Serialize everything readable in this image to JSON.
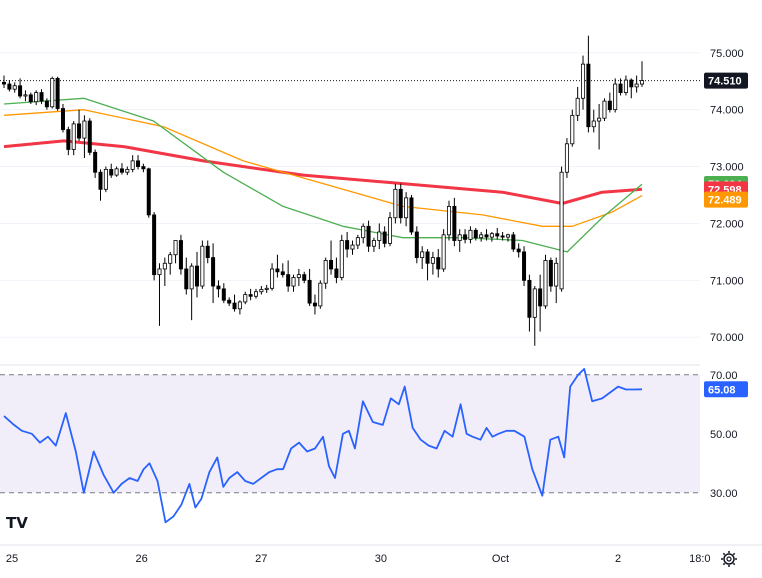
{
  "chart_data": [
    {
      "type": "candlestick",
      "pane": "price",
      "ylim": [
        69.6,
        75.4
      ],
      "yticks": [
        "75.000",
        "74.000",
        "73.000",
        "72.000",
        "71.000",
        "70.000"
      ],
      "last_price_label": "74.510",
      "colors": {
        "up": "#ffffff",
        "down": "#000000",
        "outline": "#000000"
      },
      "candles": [
        [
          74.48,
          74.6,
          74.38,
          74.45
        ],
        [
          74.45,
          74.52,
          74.32,
          74.36
        ],
        [
          74.36,
          74.48,
          74.3,
          74.42
        ],
        [
          74.42,
          74.55,
          74.2,
          74.24
        ],
        [
          74.24,
          74.34,
          74.15,
          74.26
        ],
        [
          74.26,
          74.3,
          74.1,
          74.14
        ],
        [
          74.14,
          74.34,
          74.08,
          74.3
        ],
        [
          74.3,
          74.36,
          74.1,
          74.15
        ],
        [
          74.15,
          74.2,
          74.0,
          74.05
        ],
        [
          74.05,
          74.58,
          74.02,
          74.55
        ],
        [
          74.55,
          74.58,
          73.98,
          74.02
        ],
        [
          74.02,
          74.1,
          73.6,
          73.65
        ],
        [
          73.65,
          73.7,
          73.2,
          73.3
        ],
        [
          73.3,
          73.8,
          73.2,
          73.75
        ],
        [
          73.75,
          74.0,
          73.45,
          73.5
        ],
        [
          73.5,
          73.9,
          73.15,
          73.8
        ],
        [
          73.8,
          73.85,
          73.2,
          73.25
        ],
        [
          73.25,
          73.3,
          72.8,
          72.9
        ],
        [
          72.9,
          72.95,
          72.4,
          72.6
        ],
        [
          72.6,
          73.0,
          72.55,
          72.95
        ],
        [
          72.95,
          73.05,
          72.8,
          72.85
        ],
        [
          72.85,
          73.0,
          72.82,
          72.96
        ],
        [
          72.96,
          73.06,
          72.86,
          72.9
        ],
        [
          72.9,
          73.0,
          72.85,
          72.95
        ],
        [
          72.95,
          73.2,
          72.9,
          73.1
        ],
        [
          73.1,
          73.2,
          72.95,
          73.0
        ],
        [
          73.0,
          73.05,
          72.9,
          72.96
        ],
        [
          72.96,
          72.98,
          72.1,
          72.15
        ],
        [
          72.15,
          72.2,
          71.0,
          71.1
        ],
        [
          71.1,
          71.3,
          70.2,
          71.2
        ],
        [
          71.2,
          71.4,
          70.9,
          71.3
        ],
        [
          71.3,
          71.5,
          71.1,
          71.45
        ],
        [
          71.45,
          71.7,
          71.3,
          71.7
        ],
        [
          71.7,
          71.8,
          71.1,
          71.2
        ],
        [
          71.2,
          71.4,
          70.75,
          70.85
        ],
        [
          70.85,
          71.3,
          70.3,
          71.25
        ],
        [
          71.25,
          71.5,
          70.7,
          70.9
        ],
        [
          70.9,
          71.7,
          70.85,
          71.6
        ],
        [
          71.6,
          71.7,
          71.3,
          71.4
        ],
        [
          71.4,
          71.65,
          70.6,
          70.9
        ],
        [
          70.9,
          71.0,
          70.7,
          70.85
        ],
        [
          70.85,
          70.95,
          70.6,
          70.65
        ],
        [
          70.65,
          70.7,
          70.55,
          70.6
        ],
        [
          70.6,
          70.75,
          70.45,
          70.5
        ],
        [
          70.5,
          70.65,
          70.4,
          70.62
        ],
        [
          70.62,
          70.8,
          70.58,
          70.75
        ],
        [
          70.75,
          70.85,
          70.65,
          70.72
        ],
        [
          70.72,
          70.85,
          70.68,
          70.8
        ],
        [
          70.8,
          70.9,
          70.75,
          70.84
        ],
        [
          70.84,
          70.92,
          70.78,
          70.86
        ],
        [
          70.86,
          71.3,
          70.82,
          71.2
        ],
        [
          71.2,
          71.45,
          71.05,
          71.15
        ],
        [
          71.15,
          71.3,
          71.05,
          71.1
        ],
        [
          71.1,
          71.35,
          70.8,
          70.9
        ],
        [
          70.9,
          71.1,
          70.8,
          71.05
        ],
        [
          71.05,
          71.2,
          70.9,
          71.1
        ],
        [
          71.1,
          71.15,
          70.95,
          71.0
        ],
        [
          71.0,
          71.2,
          70.55,
          70.6
        ],
        [
          70.6,
          70.75,
          70.4,
          70.55
        ],
        [
          70.55,
          71.0,
          70.5,
          70.95
        ],
        [
          70.95,
          71.4,
          70.85,
          71.35
        ],
        [
          71.35,
          71.7,
          71.1,
          71.2
        ],
        [
          71.2,
          71.4,
          70.95,
          71.05
        ],
        [
          71.05,
          71.8,
          71.0,
          71.7
        ],
        [
          71.7,
          71.85,
          71.4,
          71.55
        ],
        [
          71.55,
          71.7,
          71.45,
          71.62
        ],
        [
          71.62,
          71.8,
          71.55,
          71.75
        ],
        [
          71.75,
          72.0,
          71.65,
          71.95
        ],
        [
          71.95,
          72.05,
          71.5,
          71.6
        ],
        [
          71.6,
          71.75,
          71.5,
          71.7
        ],
        [
          71.7,
          72.0,
          71.55,
          71.85
        ],
        [
          71.85,
          71.95,
          71.58,
          71.65
        ],
        [
          71.65,
          72.2,
          71.6,
          72.1
        ],
        [
          72.1,
          72.7,
          72.0,
          72.6
        ],
        [
          72.6,
          72.7,
          72.0,
          72.1
        ],
        [
          72.1,
          72.55,
          71.95,
          72.45
        ],
        [
          72.45,
          72.5,
          71.8,
          71.85
        ],
        [
          71.85,
          71.95,
          71.3,
          71.4
        ],
        [
          71.4,
          71.6,
          71.2,
          71.5
        ],
        [
          71.5,
          71.55,
          71.0,
          71.3
        ],
        [
          71.3,
          71.5,
          71.1,
          71.4
        ],
        [
          71.4,
          71.55,
          71.05,
          71.2
        ],
        [
          71.2,
          71.9,
          71.15,
          71.8
        ],
        [
          71.8,
          72.4,
          71.7,
          72.3
        ],
        [
          72.3,
          72.45,
          71.6,
          71.7
        ],
        [
          71.7,
          71.9,
          71.5,
          71.8
        ],
        [
          71.8,
          71.9,
          71.65,
          71.72
        ],
        [
          71.72,
          71.95,
          71.65,
          71.88
        ],
        [
          71.88,
          71.92,
          71.7,
          71.75
        ],
        [
          71.75,
          71.85,
          71.68,
          71.8
        ],
        [
          71.8,
          71.9,
          71.7,
          71.76
        ],
        [
          71.76,
          71.85,
          71.68,
          71.82
        ],
        [
          71.82,
          71.92,
          71.72,
          71.78
        ],
        [
          71.78,
          71.85,
          71.7,
          71.76
        ],
        [
          71.76,
          71.82,
          71.68,
          71.8
        ],
        [
          71.8,
          71.85,
          71.5,
          71.55
        ],
        [
          71.55,
          71.65,
          71.4,
          71.5
        ],
        [
          71.5,
          71.6,
          70.9,
          71.0
        ],
        [
          71.0,
          71.1,
          70.1,
          70.35
        ],
        [
          70.35,
          70.9,
          69.85,
          70.85
        ],
        [
          70.85,
          71.1,
          70.1,
          70.55
        ],
        [
          70.55,
          71.45,
          70.5,
          71.35
        ],
        [
          71.35,
          71.4,
          70.8,
          70.9
        ],
        [
          70.9,
          71.4,
          70.6,
          71.3
        ],
        [
          70.85,
          73.0,
          70.8,
          72.9
        ],
        [
          72.9,
          73.5,
          72.8,
          73.4
        ],
        [
          73.4,
          74.0,
          73.35,
          73.9
        ],
        [
          73.9,
          74.4,
          73.8,
          74.2
        ],
        [
          74.2,
          74.95,
          74.0,
          74.8
        ],
        [
          74.8,
          75.3,
          73.6,
          73.7
        ],
        [
          73.7,
          74.0,
          73.6,
          73.8
        ],
        [
          73.8,
          74.1,
          73.3,
          73.85
        ],
        [
          73.85,
          74.2,
          73.8,
          74.15
        ],
        [
          74.15,
          74.3,
          73.95,
          74.0
        ],
        [
          74.0,
          74.55,
          73.95,
          74.45
        ],
        [
          74.45,
          74.55,
          74.25,
          74.3
        ],
        [
          74.3,
          74.6,
          74.25,
          74.52
        ],
        [
          74.52,
          74.55,
          74.2,
          74.4
        ],
        [
          74.4,
          74.6,
          74.3,
          74.45
        ],
        [
          74.45,
          74.85,
          74.4,
          74.51
        ]
      ],
      "moving_averages": [
        {
          "color": "#f23645",
          "width": 3,
          "last_label": "72.598",
          "values": [
            [
              0,
              73.35
            ],
            [
              60,
              73.45
            ],
            [
              120,
              73.35
            ],
            [
              200,
              73.1
            ],
            [
              300,
              72.85
            ],
            [
              400,
              72.7
            ],
            [
              500,
              72.55
            ],
            [
              560,
              72.35
            ],
            [
              600,
              72.55
            ],
            [
              640,
              72.6
            ]
          ]
        },
        {
          "color": "#ff9800",
          "width": 1.3,
          "last_label": "72.489",
          "values": [
            [
              0,
              73.9
            ],
            [
              80,
              74.0
            ],
            [
              160,
              73.7
            ],
            [
              240,
              73.1
            ],
            [
              300,
              72.8
            ],
            [
              400,
              72.3
            ],
            [
              480,
              72.15
            ],
            [
              540,
              71.95
            ],
            [
              570,
              71.95
            ],
            [
              610,
              72.2
            ],
            [
              640,
              72.49
            ]
          ]
        },
        {
          "color": "#4caf50",
          "width": 1.3,
          "last_label": "72.694",
          "values": [
            [
              0,
              74.1
            ],
            [
              80,
              74.2
            ],
            [
              150,
              73.8
            ],
            [
              220,
              72.9
            ],
            [
              280,
              72.3
            ],
            [
              340,
              71.95
            ],
            [
              400,
              71.75
            ],
            [
              460,
              71.75
            ],
            [
              520,
              71.7
            ],
            [
              565,
              71.5
            ],
            [
              600,
              72.1
            ],
            [
              640,
              72.69
            ]
          ]
        }
      ]
    },
    {
      "type": "line",
      "pane": "rsi",
      "ylim": [
        14,
        75
      ],
      "yticks": [
        "70.00",
        "50.00",
        "30.00"
      ],
      "bands": [
        30,
        70
      ],
      "last_label": "65.08",
      "color": "#2962ff",
      "values": [
        [
          0,
          56
        ],
        [
          10,
          53
        ],
        [
          18,
          51
        ],
        [
          28,
          50
        ],
        [
          36,
          47
        ],
        [
          44,
          49
        ],
        [
          52,
          46
        ],
        [
          62,
          57
        ],
        [
          72,
          44
        ],
        [
          80,
          30
        ],
        [
          90,
          44
        ],
        [
          100,
          36
        ],
        [
          110,
          30
        ],
        [
          118,
          33
        ],
        [
          126,
          35
        ],
        [
          134,
          34
        ],
        [
          140,
          38
        ],
        [
          146,
          40
        ],
        [
          154,
          34
        ],
        [
          162,
          20
        ],
        [
          170,
          22
        ],
        [
          178,
          26
        ],
        [
          186,
          33
        ],
        [
          192,
          25
        ],
        [
          198,
          28
        ],
        [
          206,
          37
        ],
        [
          214,
          42
        ],
        [
          220,
          32
        ],
        [
          226,
          35
        ],
        [
          234,
          37
        ],
        [
          242,
          34
        ],
        [
          250,
          33
        ],
        [
          258,
          35
        ],
        [
          266,
          37
        ],
        [
          274,
          38
        ],
        [
          280,
          38
        ],
        [
          288,
          45
        ],
        [
          296,
          47
        ],
        [
          304,
          44
        ],
        [
          312,
          45
        ],
        [
          320,
          49
        ],
        [
          326,
          39
        ],
        [
          332,
          35
        ],
        [
          340,
          50
        ],
        [
          346,
          51
        ],
        [
          352,
          45
        ],
        [
          360,
          61
        ],
        [
          370,
          54
        ],
        [
          380,
          53
        ],
        [
          388,
          62
        ],
        [
          396,
          60
        ],
        [
          402,
          66
        ],
        [
          410,
          52
        ],
        [
          418,
          48
        ],
        [
          426,
          46
        ],
        [
          434,
          45
        ],
        [
          442,
          51
        ],
        [
          450,
          49
        ],
        [
          458,
          60
        ],
        [
          464,
          50
        ],
        [
          470,
          49
        ],
        [
          478,
          48
        ],
        [
          484,
          52
        ],
        [
          490,
          49
        ],
        [
          496,
          50
        ],
        [
          504,
          51
        ],
        [
          512,
          51
        ],
        [
          522,
          49
        ],
        [
          530,
          38
        ],
        [
          540,
          29
        ],
        [
          548,
          48
        ],
        [
          556,
          49
        ],
        [
          562,
          42
        ],
        [
          568,
          66
        ],
        [
          576,
          70
        ],
        [
          582,
          72
        ],
        [
          590,
          61
        ],
        [
          600,
          62
        ],
        [
          608,
          64
        ],
        [
          616,
          66
        ],
        [
          624,
          65
        ],
        [
          632,
          65
        ],
        [
          640,
          65.08
        ]
      ]
    }
  ],
  "x_axis": {
    "labels": [
      {
        "text": "25",
        "x": 0
      },
      {
        "text": "26",
        "x": 130
      },
      {
        "text": "27",
        "x": 250
      },
      {
        "text": "30",
        "x": 370
      },
      {
        "text": "Oct",
        "x": 490
      },
      {
        "text": "2",
        "x": 608
      },
      {
        "text": "18:0",
        "x": 690
      }
    ]
  },
  "logo": {
    "text": "TV"
  },
  "icons": {
    "settings": "gear-icon"
  }
}
